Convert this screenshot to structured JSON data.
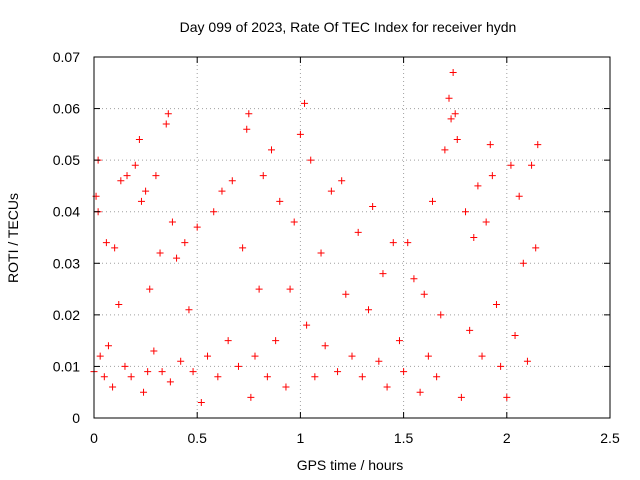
{
  "chart_data": {
    "type": "scatter",
    "title": "Day 099 of 2023, Rate Of TEC Index for receiver hydn",
    "xlabel": "GPS time / hours",
    "ylabel": "ROTI / TECUs",
    "xlim": [
      0,
      2.5
    ],
    "ylim": [
      0,
      0.07
    ],
    "xticks": [
      0,
      0.5,
      1,
      1.5,
      2,
      2.5
    ],
    "xtick_labels": [
      "0",
      "0.5",
      "1",
      "1.5",
      "2",
      "2.5"
    ],
    "yticks": [
      0,
      0.01,
      0.02,
      0.03,
      0.04,
      0.05,
      0.06,
      0.07
    ],
    "ytick_labels": [
      "0",
      "0.01",
      "0.02",
      "0.03",
      "0.04",
      "0.05",
      "0.06",
      "0.07"
    ],
    "grid": true,
    "marker": "plus",
    "color": "#ff0000",
    "series": [
      {
        "x": [
          0.0,
          0.01,
          0.02,
          0.02,
          0.03,
          0.05,
          0.06,
          0.07,
          0.09,
          0.1,
          0.12,
          0.13,
          0.15,
          0.16,
          0.18,
          0.2,
          0.22,
          0.23,
          0.24,
          0.25,
          0.26,
          0.27,
          0.29,
          0.3,
          0.32,
          0.33,
          0.35,
          0.36,
          0.37,
          0.38,
          0.4,
          0.42,
          0.44,
          0.46,
          0.48,
          0.5,
          0.52,
          0.55,
          0.58,
          0.6,
          0.62,
          0.65,
          0.67,
          0.7,
          0.72,
          0.74,
          0.75,
          0.76,
          0.78,
          0.8,
          0.82,
          0.84,
          0.86,
          0.88,
          0.9,
          0.93,
          0.95,
          0.97,
          1.0,
          1.02,
          1.03,
          1.05,
          1.07,
          1.1,
          1.12,
          1.15,
          1.18,
          1.2,
          1.22,
          1.25,
          1.28,
          1.3,
          1.33,
          1.35,
          1.38,
          1.4,
          1.42,
          1.45,
          1.48,
          1.5,
          1.52,
          1.55,
          1.58,
          1.6,
          1.62,
          1.64,
          1.66,
          1.68,
          1.7,
          1.72,
          1.73,
          1.74,
          1.75,
          1.76,
          1.78,
          1.8,
          1.82,
          1.84,
          1.86,
          1.88,
          1.9,
          1.92,
          1.93,
          1.95,
          1.97,
          2.0,
          2.02,
          2.04,
          2.06,
          2.08,
          2.1,
          2.12,
          2.14,
          2.15
        ],
        "y": [
          0.009,
          0.043,
          0.05,
          0.04,
          0.012,
          0.008,
          0.034,
          0.014,
          0.006,
          0.033,
          0.022,
          0.046,
          0.01,
          0.047,
          0.008,
          0.049,
          0.054,
          0.042,
          0.005,
          0.044,
          0.009,
          0.025,
          0.013,
          0.047,
          0.032,
          0.009,
          0.057,
          0.059,
          0.007,
          0.038,
          0.031,
          0.011,
          0.034,
          0.021,
          0.009,
          0.037,
          0.003,
          0.012,
          0.04,
          0.008,
          0.044,
          0.015,
          0.046,
          0.01,
          0.033,
          0.056,
          0.059,
          0.004,
          0.012,
          0.025,
          0.047,
          0.008,
          0.052,
          0.015,
          0.042,
          0.006,
          0.025,
          0.038,
          0.055,
          0.061,
          0.018,
          0.05,
          0.008,
          0.032,
          0.014,
          0.044,
          0.009,
          0.046,
          0.024,
          0.012,
          0.036,
          0.008,
          0.021,
          0.041,
          0.011,
          0.028,
          0.006,
          0.034,
          0.015,
          0.009,
          0.034,
          0.027,
          0.005,
          0.024,
          0.012,
          0.042,
          0.008,
          0.02,
          0.052,
          0.062,
          0.058,
          0.067,
          0.059,
          0.054,
          0.004,
          0.04,
          0.017,
          0.035,
          0.045,
          0.012,
          0.038,
          0.053,
          0.047,
          0.022,
          0.01,
          0.004,
          0.049,
          0.016,
          0.043,
          0.03,
          0.011,
          0.049,
          0.033,
          0.053
        ]
      }
    ]
  }
}
